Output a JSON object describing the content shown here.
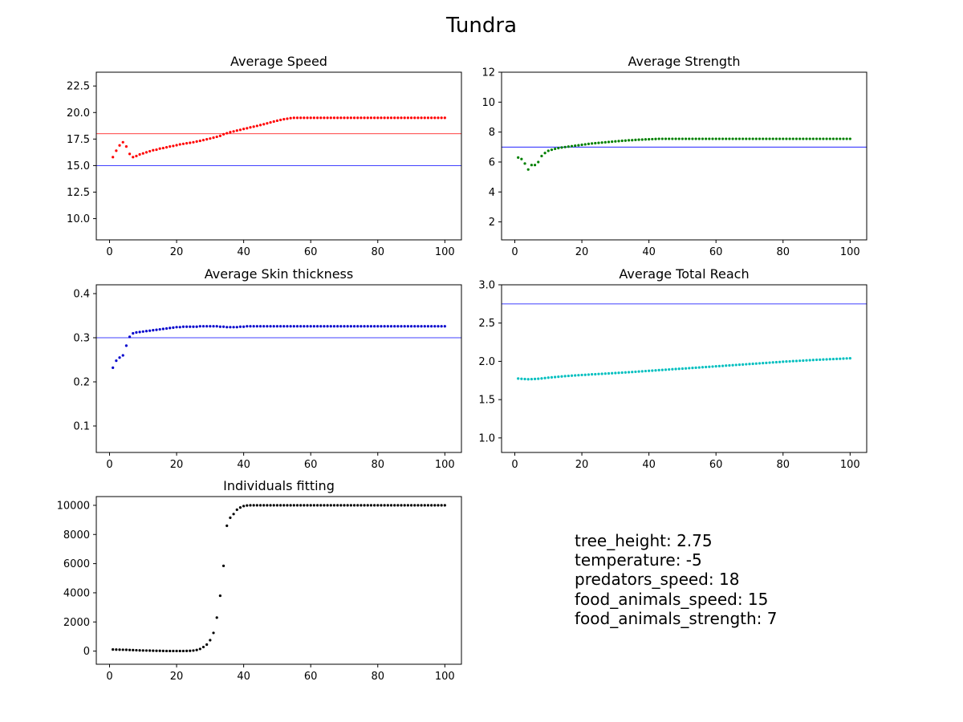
{
  "figure": {
    "title": "Tundra"
  },
  "chart_data": [
    {
      "type": "scatter",
      "title": "Average Speed",
      "xlim": [
        -3.95,
        104.95
      ],
      "ylim": [
        8.0,
        23.8
      ],
      "xticks": [
        0,
        20,
        40,
        60,
        80,
        100
      ],
      "xtick_labels": [
        "0",
        "20",
        "40",
        "60",
        "80",
        "100"
      ],
      "yticks": [
        10.0,
        12.5,
        15.0,
        17.5,
        20.0,
        22.5
      ],
      "ytick_labels": [
        "10.0",
        "12.5",
        "15.0",
        "17.5",
        "20.0",
        "22.5"
      ],
      "color": "#ff0000",
      "hlines": [
        {
          "y": 18,
          "color": "#ff0000"
        },
        {
          "y": 15,
          "color": "#0000ff"
        }
      ],
      "x_range": [
        1,
        100
      ],
      "y": [
        15.8,
        16.4,
        16.9,
        17.2,
        16.8,
        16.1,
        15.8,
        15.9,
        16.05,
        16.15,
        16.25,
        16.35,
        16.45,
        16.5,
        16.6,
        16.65,
        16.72,
        16.8,
        16.85,
        16.92,
        17.0,
        17.05,
        17.1,
        17.15,
        17.2,
        17.27,
        17.33,
        17.4,
        17.48,
        17.55,
        17.63,
        17.71,
        17.8,
        17.95,
        18.05,
        18.15,
        18.22,
        18.3,
        18.37,
        18.45,
        18.52,
        18.6,
        18.67,
        18.74,
        18.82,
        18.9,
        18.98,
        19.07,
        19.15,
        19.23,
        19.3,
        19.37,
        19.42,
        19.47,
        19.5,
        19.5,
        19.5,
        19.5,
        19.5,
        19.5,
        19.5,
        19.5,
        19.5,
        19.5,
        19.5,
        19.5,
        19.5,
        19.5,
        19.5,
        19.5,
        19.5,
        19.5,
        19.5,
        19.5,
        19.5,
        19.5,
        19.5,
        19.5,
        19.5,
        19.5,
        19.5,
        19.5,
        19.5,
        19.5,
        19.5,
        19.5,
        19.5,
        19.5,
        19.5,
        19.5,
        19.5,
        19.5,
        19.5,
        19.5,
        19.5,
        19.5,
        19.5,
        19.5,
        19.5,
        19.5
      ]
    },
    {
      "type": "scatter",
      "title": "Average Strength",
      "xlim": [
        -3.95,
        104.95
      ],
      "ylim": [
        0.8,
        12.0
      ],
      "xticks": [
        0,
        20,
        40,
        60,
        80,
        100
      ],
      "xtick_labels": [
        "0",
        "20",
        "40",
        "60",
        "80",
        "100"
      ],
      "yticks": [
        2,
        4,
        6,
        8,
        10,
        12
      ],
      "ytick_labels": [
        "2",
        "4",
        "6",
        "8",
        "10",
        "12"
      ],
      "color": "#008000",
      "hlines": [
        {
          "y": 7,
          "color": "#0000ff"
        }
      ],
      "x_range": [
        1,
        100
      ],
      "y": [
        6.3,
        6.2,
        5.9,
        5.5,
        5.8,
        5.8,
        6.0,
        6.4,
        6.6,
        6.75,
        6.82,
        6.88,
        6.93,
        6.97,
        7.0,
        7.03,
        7.06,
        7.09,
        7.12,
        7.15,
        7.18,
        7.21,
        7.24,
        7.26,
        7.28,
        7.3,
        7.32,
        7.34,
        7.36,
        7.38,
        7.4,
        7.42,
        7.43,
        7.45,
        7.46,
        7.48,
        7.49,
        7.5,
        7.51,
        7.52,
        7.53,
        7.54,
        7.55,
        7.55,
        7.55,
        7.55,
        7.55,
        7.55,
        7.55,
        7.55,
        7.55,
        7.55,
        7.55,
        7.55,
        7.55,
        7.55,
        7.55,
        7.55,
        7.55,
        7.55,
        7.55,
        7.55,
        7.55,
        7.55,
        7.55,
        7.55,
        7.55,
        7.55,
        7.55,
        7.55,
        7.55,
        7.55,
        7.55,
        7.55,
        7.55,
        7.55,
        7.55,
        7.55,
        7.55,
        7.55,
        7.55,
        7.55,
        7.55,
        7.55,
        7.55,
        7.55,
        7.55,
        7.55,
        7.55,
        7.55,
        7.55,
        7.55,
        7.55,
        7.55,
        7.55,
        7.55,
        7.55,
        7.55,
        7.55,
        7.55
      ]
    },
    {
      "type": "scatter",
      "title": "Average Skin thickness",
      "xlim": [
        -3.95,
        104.95
      ],
      "ylim": [
        0.04,
        0.42
      ],
      "xticks": [
        0,
        20,
        40,
        60,
        80,
        100
      ],
      "xtick_labels": [
        "0",
        "20",
        "40",
        "60",
        "80",
        "100"
      ],
      "yticks": [
        0.1,
        0.2,
        0.3,
        0.4
      ],
      "ytick_labels": [
        "0.1",
        "0.2",
        "0.3",
        "0.4"
      ],
      "color": "#0000cc",
      "hlines": [
        {
          "y": 0.3,
          "color": "#0000ff"
        }
      ],
      "x_range": [
        1,
        100
      ],
      "y": [
        0.232,
        0.248,
        0.255,
        0.26,
        0.282,
        0.302,
        0.31,
        0.312,
        0.313,
        0.314,
        0.315,
        0.316,
        0.317,
        0.318,
        0.319,
        0.32,
        0.321,
        0.322,
        0.323,
        0.324,
        0.324,
        0.325,
        0.325,
        0.325,
        0.325,
        0.325,
        0.326,
        0.326,
        0.326,
        0.326,
        0.326,
        0.326,
        0.325,
        0.325,
        0.324,
        0.324,
        0.324,
        0.324,
        0.325,
        0.325,
        0.326,
        0.326,
        0.326,
        0.326,
        0.326,
        0.326,
        0.326,
        0.326,
        0.326,
        0.326,
        0.326,
        0.326,
        0.326,
        0.326,
        0.326,
        0.326,
        0.326,
        0.326,
        0.326,
        0.326,
        0.326,
        0.326,
        0.326,
        0.326,
        0.326,
        0.326,
        0.326,
        0.326,
        0.326,
        0.326,
        0.326,
        0.326,
        0.326,
        0.326,
        0.326,
        0.326,
        0.326,
        0.326,
        0.326,
        0.326,
        0.326,
        0.326,
        0.326,
        0.326,
        0.326,
        0.326,
        0.326,
        0.326,
        0.326,
        0.326,
        0.326,
        0.326,
        0.326,
        0.326,
        0.326,
        0.326,
        0.326,
        0.326,
        0.326,
        0.326
      ]
    },
    {
      "type": "scatter",
      "title": "Average Total Reach",
      "xlim": [
        -3.95,
        104.95
      ],
      "ylim": [
        0.81,
        3.0
      ],
      "xticks": [
        0,
        20,
        40,
        60,
        80,
        100
      ],
      "xtick_labels": [
        "0",
        "20",
        "40",
        "60",
        "80",
        "100"
      ],
      "yticks": [
        1.0,
        1.5,
        2.0,
        2.5,
        3.0
      ],
      "ytick_labels": [
        "1.0",
        "1.5",
        "2.0",
        "2.5",
        "3.0"
      ],
      "color": "#00bfbf",
      "hlines": [
        {
          "y": 2.75,
          "color": "#0000ff"
        }
      ],
      "x_range": [
        1,
        100
      ],
      "y": [
        1.775,
        1.772,
        1.769,
        1.766,
        1.768,
        1.77,
        1.773,
        1.777,
        1.782,
        1.787,
        1.791,
        1.795,
        1.799,
        1.803,
        1.807,
        1.81,
        1.813,
        1.816,
        1.819,
        1.822,
        1.824,
        1.827,
        1.83,
        1.832,
        1.835,
        1.837,
        1.84,
        1.842,
        1.845,
        1.847,
        1.85,
        1.853,
        1.855,
        1.858,
        1.861,
        1.864,
        1.867,
        1.87,
        1.873,
        1.876,
        1.879,
        1.882,
        1.885,
        1.888,
        1.891,
        1.894,
        1.897,
        1.9,
        1.902,
        1.905,
        1.908,
        1.911,
        1.914,
        1.917,
        1.92,
        1.923,
        1.926,
        1.929,
        1.932,
        1.935,
        1.938,
        1.941,
        1.944,
        1.947,
        1.95,
        1.953,
        1.956,
        1.959,
        1.962,
        1.965,
        1.968,
        1.971,
        1.974,
        1.977,
        1.98,
        1.983,
        1.986,
        1.989,
        1.992,
        1.995,
        1.998,
        2.0,
        2.003,
        2.005,
        2.008,
        2.01,
        2.013,
        2.015,
        2.018,
        2.02,
        2.022,
        2.024,
        2.026,
        2.028,
        2.03,
        2.032,
        2.034,
        2.036,
        2.038,
        2.04
      ]
    },
    {
      "type": "scatter",
      "title": "Individuals fitting",
      "xlim": [
        -3.95,
        104.95
      ],
      "ylim": [
        -900,
        10600
      ],
      "xticks": [
        0,
        20,
        40,
        60,
        80,
        100
      ],
      "xtick_labels": [
        "0",
        "20",
        "40",
        "60",
        "80",
        "100"
      ],
      "yticks": [
        0,
        2000,
        4000,
        6000,
        8000,
        10000
      ],
      "ytick_labels": [
        "0",
        "2000",
        "4000",
        "6000",
        "8000",
        "10000"
      ],
      "color": "#000000",
      "hlines": [],
      "x_range": [
        1,
        100
      ],
      "y": [
        110,
        105,
        100,
        95,
        90,
        80,
        70,
        60,
        50,
        45,
        40,
        35,
        30,
        25,
        20,
        15,
        10,
        10,
        10,
        10,
        10,
        10,
        15,
        20,
        40,
        80,
        150,
        280,
        450,
        750,
        1250,
        2300,
        3800,
        5850,
        8600,
        9150,
        9400,
        9700,
        9850,
        9950,
        9990,
        10000,
        10000,
        10000,
        10000,
        10000,
        10000,
        10000,
        10000,
        10000,
        10000,
        10000,
        10000,
        10000,
        10000,
        10000,
        10000,
        10000,
        10000,
        10000,
        10000,
        10000,
        10000,
        10000,
        10000,
        10000,
        10000,
        10000,
        10000,
        10000,
        10000,
        10000,
        10000,
        10000,
        10000,
        10000,
        10000,
        10000,
        10000,
        10000,
        10000,
        10000,
        10000,
        10000,
        10000,
        10000,
        10000,
        10000,
        10000,
        10000,
        10000,
        10000,
        10000,
        10000,
        10000,
        10000,
        10000,
        10000,
        10000,
        10000
      ]
    }
  ],
  "parameters": {
    "tree_height": "tree_height: 2.75",
    "temperature": "temperature: -5",
    "predators_speed": "predators_speed: 18",
    "food_animals_speed": "food_animals_speed: 15",
    "food_animals_strength": "food_animals_strength: 7"
  }
}
